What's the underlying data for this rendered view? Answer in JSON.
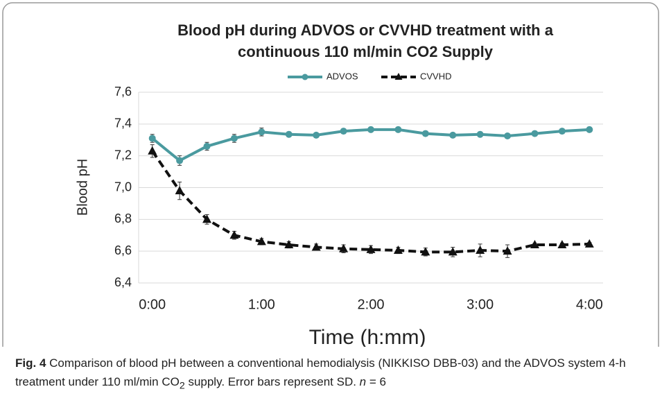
{
  "chart_data": {
    "type": "line",
    "title": [
      "Blood pH during ADVOS or CVVHD treatment with a",
      "continuous 110 ml/min CO2 Supply"
    ],
    "y_label": "Blood pH",
    "x_label": "Time (h:mm)",
    "categories": [
      "0:00",
      null,
      null,
      null,
      "1:00",
      null,
      null,
      null,
      "2:00",
      null,
      null,
      null,
      "3:00",
      null,
      null,
      null,
      "4:00"
    ],
    "ylim": [
      6.4,
      7.6
    ],
    "yticks": [
      {
        "value": 6.4,
        "label": "6,4"
      },
      {
        "value": 6.6,
        "label": "6,6"
      },
      {
        "value": 6.8,
        "label": "6,8"
      },
      {
        "value": 7.0,
        "label": "7,0"
      },
      {
        "value": 7.2,
        "label": "7,2"
      },
      {
        "value": 7.4,
        "label": "7,4"
      },
      {
        "value": 7.6,
        "label": "7,6"
      }
    ],
    "grid": true,
    "legend": "top",
    "series": [
      {
        "name": "ADVOS",
        "color": "#4a9a9f",
        "marker": "circle",
        "line_style": "solid",
        "values": [
          7.31,
          7.17,
          7.26,
          7.31,
          7.35,
          7.335,
          7.33,
          7.355,
          7.365,
          7.365,
          7.34,
          7.33,
          7.335,
          7.325,
          7.34,
          7.355,
          7.365
        ],
        "errors": [
          0.025,
          0.03,
          0.025,
          0.025,
          0.025,
          0.015,
          0.015,
          0.015,
          0.015,
          0.015,
          0.015,
          0.015,
          0.015,
          0.015,
          0.015,
          0.015,
          0.015
        ]
      },
      {
        "name": "CVVHD",
        "color": "#111111",
        "marker": "triangle",
        "line_style": "dashed",
        "values": [
          7.23,
          6.98,
          6.8,
          6.7,
          6.66,
          6.64,
          6.625,
          6.615,
          6.61,
          6.605,
          6.595,
          6.595,
          6.605,
          6.6,
          6.64,
          6.64,
          6.645
        ],
        "errors": [
          0.04,
          0.055,
          0.03,
          0.025,
          0.02,
          0.02,
          0.02,
          0.025,
          0.025,
          0.02,
          0.025,
          0.03,
          0.04,
          0.04,
          0.01,
          0.01,
          0.01
        ]
      }
    ]
  },
  "caption": {
    "label": "Fig. 4",
    "text_1": "Comparison of blood pH between a conventional hemodialysis (NIKKISO DBB-03) and the ADVOS system 4-h treatment under 110 ml/min CO",
    "subscript": "2",
    "text_2": " supply. Error bars represent SD. ",
    "n_symbol": "n",
    "n_value": " = 6"
  }
}
